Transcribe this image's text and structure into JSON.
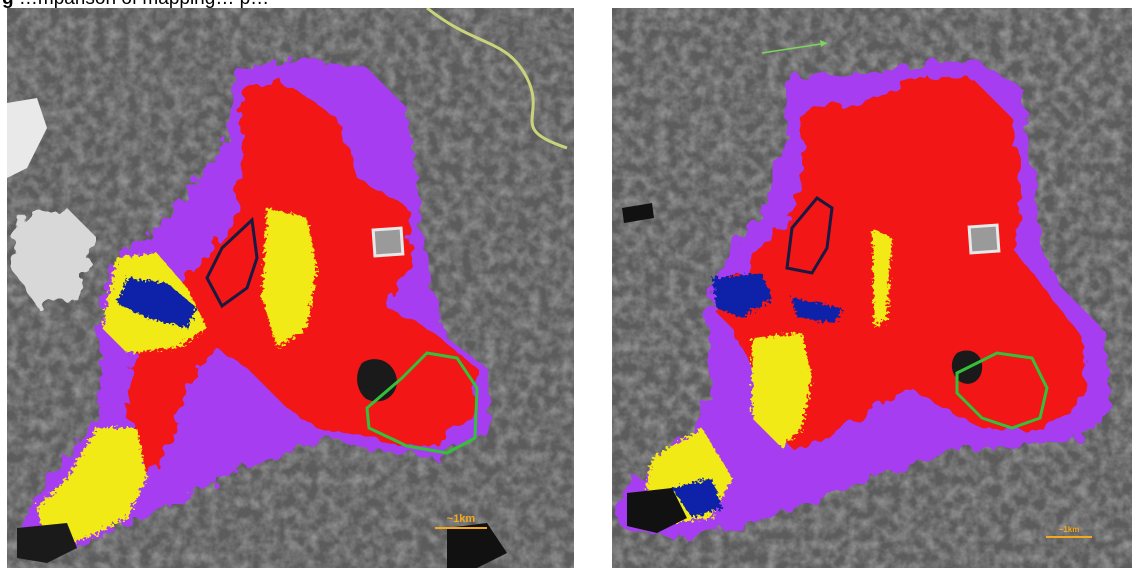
{
  "caption": {
    "prefix": "g",
    "text": "…mparison of mapping…",
    "suffix": "p…"
  },
  "colors": {
    "background": "#5c5c5c",
    "red": "#f21212",
    "purple": "#a63cf0",
    "yellow": "#f2ea12",
    "blue": "#1020a8",
    "outline_dark": "#1a1a40",
    "outline_green": "#35c03a",
    "marker_white": "#e8e8e8",
    "scale": "#f3a91e"
  },
  "panels": [
    {
      "id": "left",
      "scale_label": "~1km"
    },
    {
      "id": "right",
      "scale_label": "~1km"
    }
  ]
}
